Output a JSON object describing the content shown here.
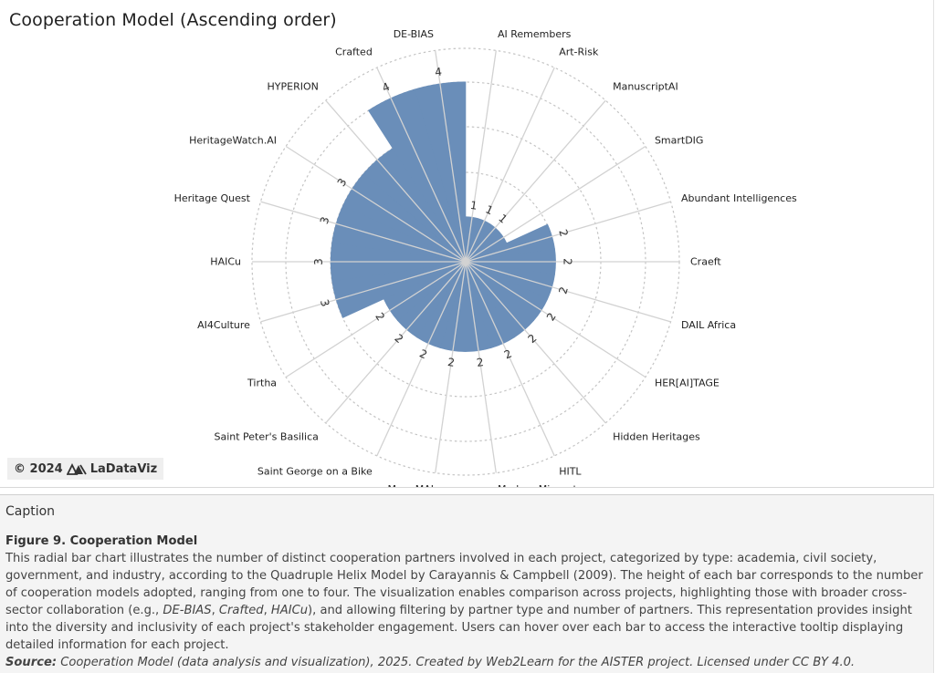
{
  "title": "Cooperation Model (Ascending order)",
  "credit": {
    "text": "© 2024",
    "brand": "LaDataViz"
  },
  "caption": {
    "heading": "Caption",
    "figure_title": "Figure 9. Cooperation Model",
    "text_before_examples": "This radial bar chart illustrates the number of distinct cooperation partners involved in each project, categorized by type: academia, civil society, government, and industry, according to the Quadruple Helix Model by Carayannis & Campbell (2009). The height of each bar corresponds to the number of cooperation models adopted, ranging from one to four. The visualization enables comparison across projects, highlighting those with broader cross-sector collaboration (e.g., ",
    "examples": [
      "DE-BIAS",
      "Crafted",
      "HAICu"
    ],
    "examples_separator": ", ",
    "text_after_examples": "), and allowing filtering by partner type and number of partners. This representation provides insight into the diversity and inclusivity of each project's stakeholder engagement. Users can hover over each bar to access the interactive tooltip displaying detailed information for each project.",
    "source_label": "Source:",
    "source_text": " Cooperation Model (data analysis and visualization), 2025. Created by Web2Learn for the AISTER project. Licensed under CC BY 4.0."
  },
  "chart_data": {
    "type": "bar",
    "layout": "radial",
    "title": "Cooperation Model (Ascending order)",
    "order": "ascending, clockwise from top",
    "categories": [
      "AI Remembers",
      "Art-Risk",
      "ManuscriptAI",
      "SmartDIG",
      "Abundant Intelligences",
      "Craeft",
      "DAIL Africa",
      "HER[AI]TAGE",
      "Hidden Heritages",
      "HITL",
      "Modern Migrants",
      "MonuMAI",
      "Saint George on a Bike",
      "Saint Peter's Basilica",
      "Tirtha",
      "AI4Culture",
      "HAICu",
      "Heritage Quest",
      "HeritageWatch.AI",
      "HYPERION",
      "Crafted",
      "DE-BIAS"
    ],
    "values": [
      1,
      1,
      1,
      1,
      2,
      2,
      2,
      2,
      2,
      2,
      2,
      2,
      2,
      2,
      2,
      3,
      3,
      3,
      3,
      3,
      4,
      4
    ],
    "value_labels": [
      "1",
      "1",
      "1",
      "",
      "2",
      "2",
      "2",
      "2",
      "2",
      "2",
      "2",
      "2",
      "2",
      "2",
      "2",
      "3",
      "3",
      "3",
      "3",
      "",
      "4",
      "4"
    ],
    "rlim": [
      0,
      4
    ],
    "bar_color": "#6a8eb9",
    "grid": true
  }
}
